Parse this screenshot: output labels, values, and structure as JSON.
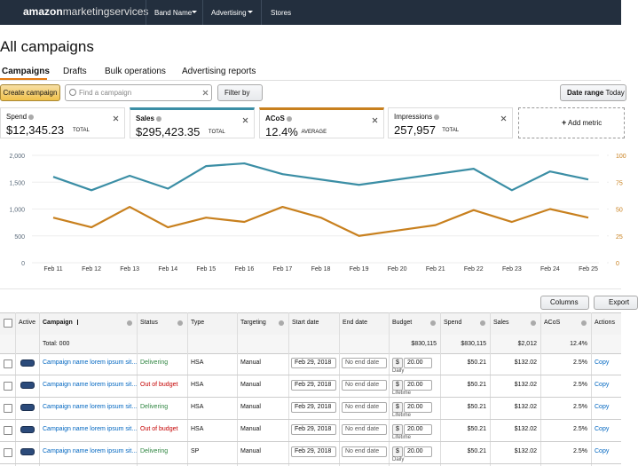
{
  "nav": {
    "logo_bold": "amazon",
    "logo_rest": "marketingservices",
    "items": [
      "Band Name",
      "Advertising",
      "Stores"
    ]
  },
  "page": {
    "title": "All campaigns",
    "tabs": [
      "Campaigns",
      "Drafts",
      "Bulk operations",
      "Advertising reports"
    ]
  },
  "toolbar": {
    "create": "Create campaign",
    "search_placeholder": "Find a campaign",
    "filter": "Filter by",
    "date_range_label": "Date range",
    "date_range_value": "Today"
  },
  "metrics": [
    {
      "name": "Spend",
      "value": "$12,345.23",
      "unit": "TOTAL"
    },
    {
      "name": "Sales",
      "value": "$295,423.35",
      "unit": "TOTAL"
    },
    {
      "name": "ACoS",
      "value": "12.4%",
      "unit": "AVERAGE"
    },
    {
      "name": "Impressions",
      "value": "257,957",
      "unit": "TOTAL"
    }
  ],
  "add_metric": "Add metric",
  "chart_data": {
    "type": "line",
    "categories": [
      "Feb 11",
      "Feb 12",
      "Feb 13",
      "Feb 14",
      "Feb 15",
      "Feb 16",
      "Feb 17",
      "Feb 18",
      "Feb 19",
      "Feb 20",
      "Feb 21",
      "Feb 22",
      "Feb 23",
      "Feb 24",
      "Feb 25"
    ],
    "series": [
      {
        "color": "#3b8ea5",
        "values": [
          1600,
          1350,
          1620,
          1380,
          1800,
          1850,
          1650,
          1550,
          1450,
          1550,
          1650,
          1750,
          1350,
          1700,
          1550
        ]
      },
      {
        "color": "#c8801e",
        "axis": "y2",
        "values": [
          42,
          33,
          52,
          33,
          42,
          38,
          52,
          42,
          25,
          30,
          35,
          49,
          38,
          50,
          42
        ]
      }
    ],
    "ylim": [
      0,
      2000
    ],
    "yticks": [
      0,
      500,
      {
        "value": 1000,
        "label": "1,000"
      },
      {
        "value": 1500,
        "label": "1,500"
      },
      {
        "value": 2000,
        "label": "2,000"
      }
    ],
    "y2lim": [
      0,
      100
    ],
    "y2ticks": [
      0,
      25,
      50,
      75,
      100
    ],
    "grid": true
  },
  "table": {
    "columns_button": "Columns",
    "export_button": "Export",
    "headers": [
      "Active",
      "Campaign",
      "Status",
      "Type",
      "Targeting",
      "Start date",
      "End date",
      "Budget",
      "Spend",
      "Sales",
      "ACoS",
      "Actions"
    ],
    "total": {
      "label": "Total: 000",
      "budget": "$830,115",
      "spend": "$830,115",
      "sales": "$2,012",
      "acos": "12.4%"
    },
    "rows": [
      {
        "campaign": "Campaign name lorem ipsum sit...",
        "status": "Delivering",
        "type": "HSA",
        "targeting": "Manual",
        "start_date": "Feb 29, 2018",
        "end_date_placeholder": "No end date",
        "currency": "$",
        "budget": "20.00",
        "budget_type": "Daily",
        "spend": "$50.21",
        "sales": "$132.02",
        "acos": "2.5%",
        "action": "Copy"
      },
      {
        "campaign": "Campaign name lorem ipsum sit...",
        "status": "Out of budget",
        "type": "HSA",
        "targeting": "Manual",
        "start_date": "Feb 29, 2018",
        "end_date_placeholder": "No end date",
        "currency": "$",
        "budget": "20.00",
        "budget_type": "Lifetime",
        "spend": "$50.21",
        "sales": "$132.02",
        "acos": "2.5%",
        "action": "Copy"
      },
      {
        "campaign": "Campaign name lorem ipsum sit...",
        "status": "Delivering",
        "type": "HSA",
        "targeting": "Manual",
        "start_date": "Feb 29, 2018",
        "end_date_placeholder": "No end date",
        "currency": "$",
        "budget": "20.00",
        "budget_type": "Lifetime",
        "spend": "$50.21",
        "sales": "$132.02",
        "acos": "2.5%",
        "action": "Copy"
      },
      {
        "campaign": "Campaign name lorem ipsum sit...",
        "status": "Out of budget",
        "type": "HSA",
        "targeting": "Manual",
        "start_date": "Feb 29, 2018",
        "end_date_placeholder": "No end date",
        "currency": "$",
        "budget": "20.00",
        "budget_type": "Lifetime",
        "spend": "$50.21",
        "sales": "$132.02",
        "acos": "2.5%",
        "action": "Copy"
      },
      {
        "campaign": "Campaign name lorem ipsum sit...",
        "status": "Delivering",
        "type": "SP",
        "targeting": "Manual",
        "start_date": "Feb 29, 2018",
        "end_date_placeholder": "No end date",
        "currency": "$",
        "budget": "20.00",
        "budget_type": "Daily",
        "spend": "$50.21",
        "sales": "$132.02",
        "acos": "2.5%",
        "action": "Copy"
      }
    ]
  }
}
